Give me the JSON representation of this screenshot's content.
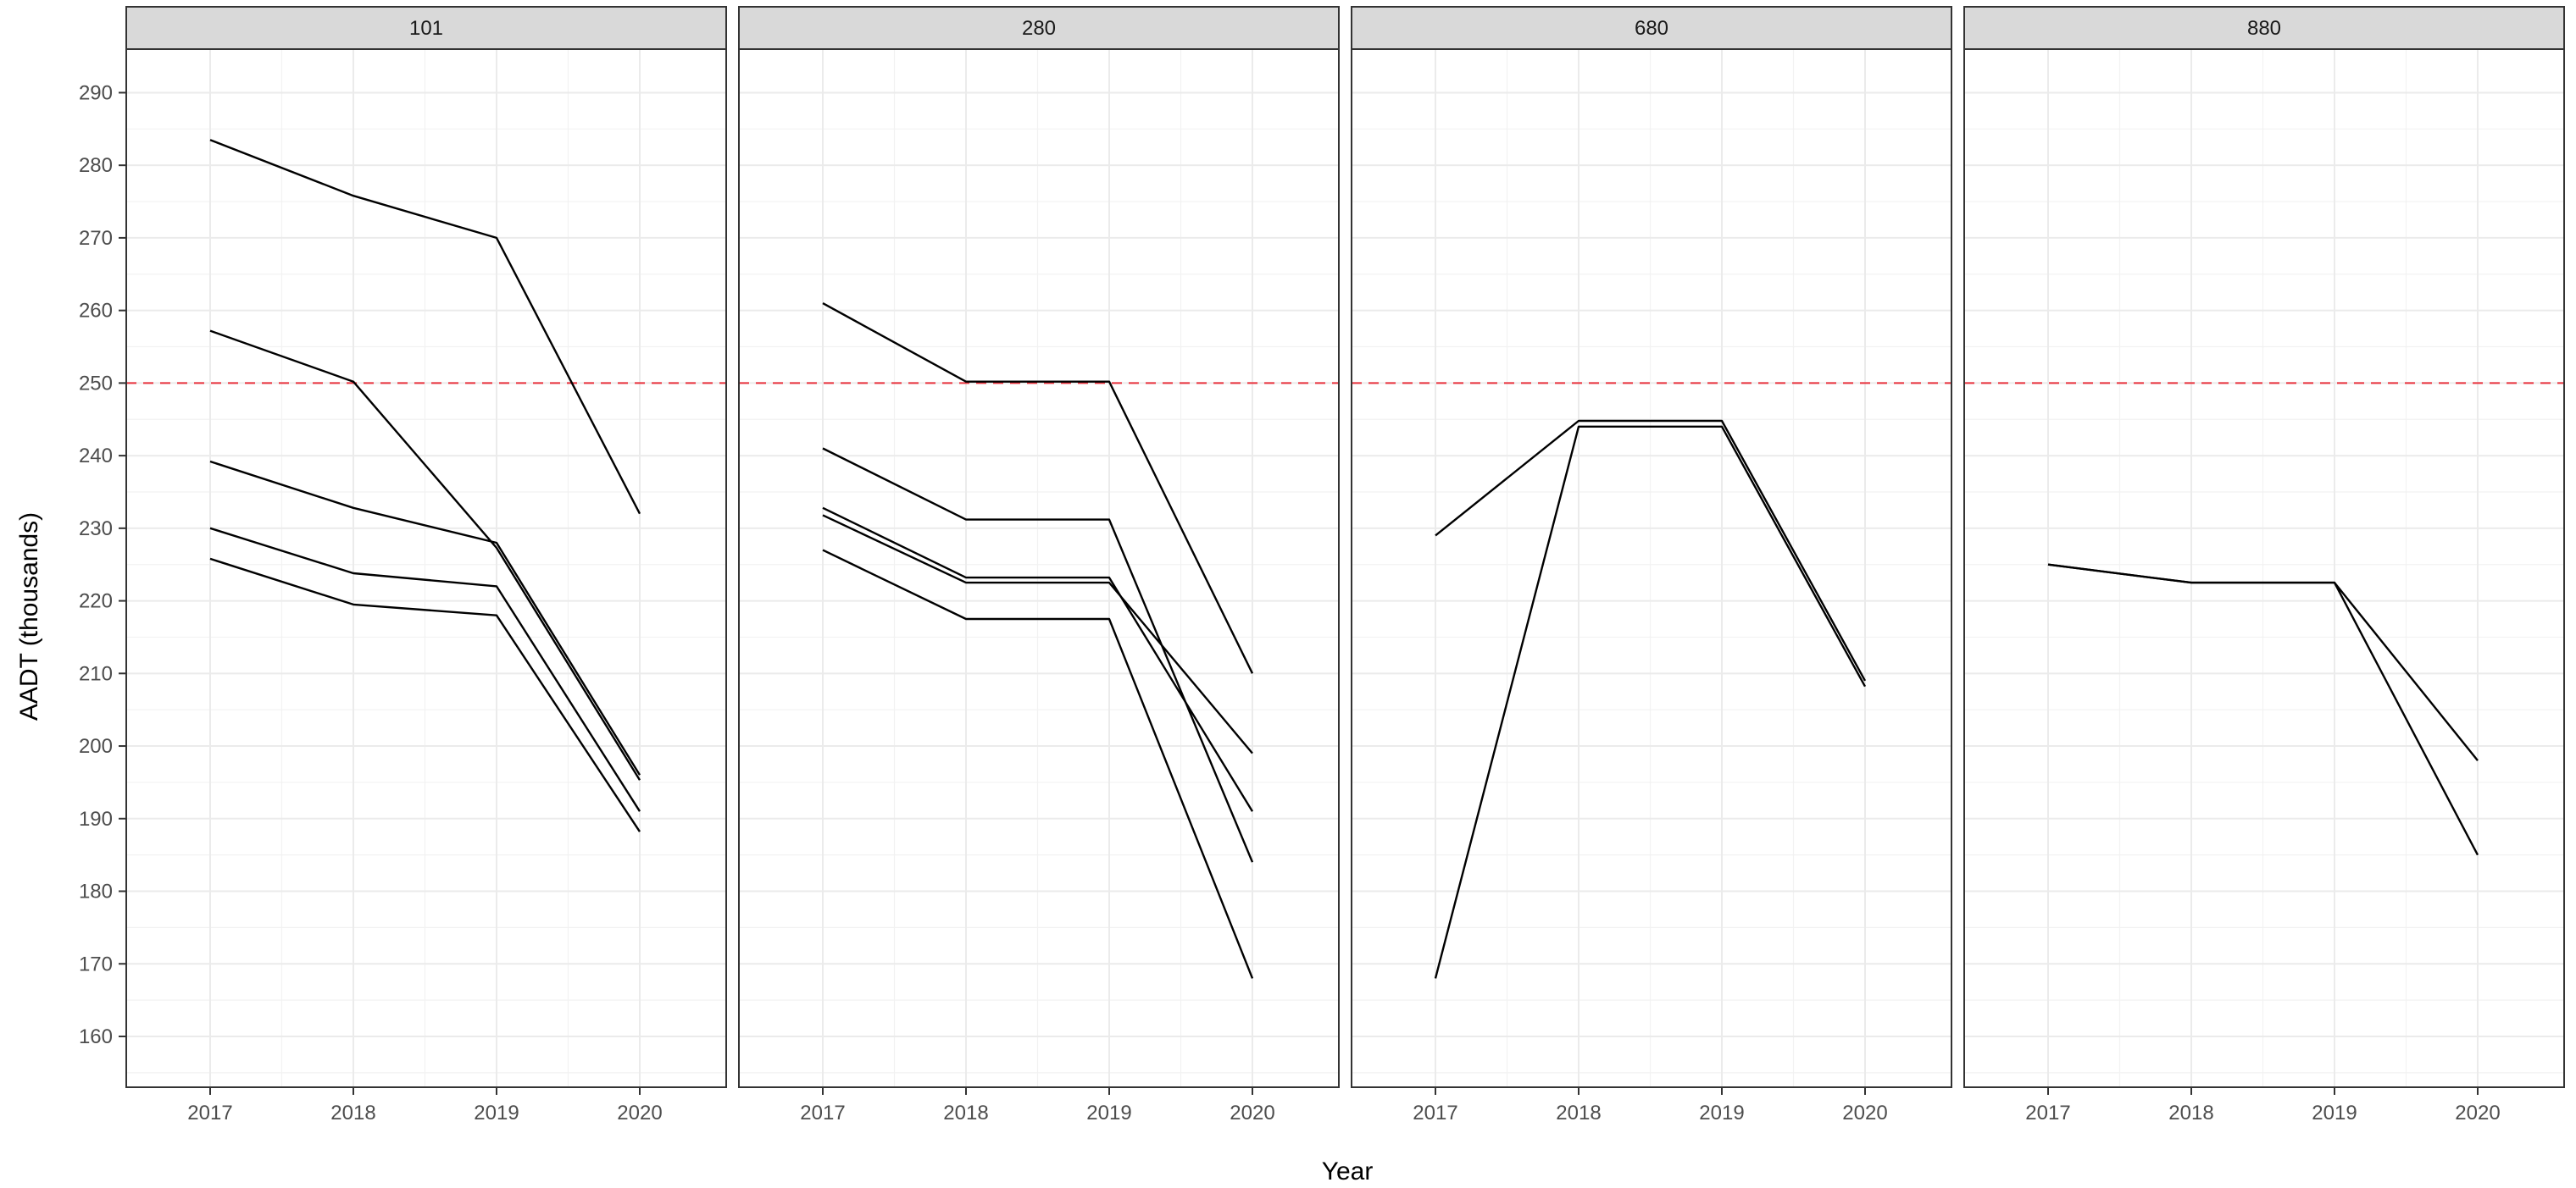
{
  "chart_data": {
    "type": "line",
    "facet_by": "highway",
    "xlabel": "Year",
    "ylabel": "AADT (thousands)",
    "x": [
      2017,
      2018,
      2019,
      2020
    ],
    "xticks": [
      "2017",
      "2018",
      "2019",
      "2020"
    ],
    "ylim": [
      153,
      296
    ],
    "yticks": [
      160,
      170,
      180,
      190,
      200,
      210,
      220,
      230,
      240,
      250,
      260,
      270,
      280,
      290
    ],
    "reference_line": {
      "y": 250,
      "color": "#E8323C",
      "style": "dashed"
    },
    "grid": true,
    "line_color": "#000000",
    "panels": [
      {
        "label": "101",
        "series": [
          {
            "values": [
              283.5,
              275.8,
              270.0,
              232.0
            ]
          },
          {
            "values": [
              257.2,
              250.2,
              227.3,
              195.3
            ]
          },
          {
            "values": [
              239.2,
              232.8,
              228.0,
              196.0
            ]
          },
          {
            "values": [
              230.0,
              223.8,
              222.0,
              191.0
            ]
          },
          {
            "values": [
              225.8,
              219.5,
              218.0,
              188.2
            ]
          }
        ]
      },
      {
        "label": "280",
        "series": [
          {
            "values": [
              261.0,
              250.2,
              250.2,
              210.0
            ]
          },
          {
            "values": [
              241.0,
              231.2,
              231.2,
              184.0
            ]
          },
          {
            "values": [
              232.8,
              223.2,
              223.2,
              191.0
            ]
          },
          {
            "values": [
              231.8,
              222.5,
              222.5,
              199.0
            ]
          },
          {
            "values": [
              227.0,
              217.5,
              217.5,
              168.0
            ]
          }
        ]
      },
      {
        "label": "680",
        "series": [
          {
            "values": [
              229.0,
              244.8,
              244.8,
              209.0
            ]
          },
          {
            "values": [
              168.0,
              244.0,
              244.0,
              208.2
            ]
          }
        ]
      },
      {
        "label": "880",
        "series": [
          {
            "values": [
              225.0,
              222.5,
              222.5,
              198.0
            ]
          },
          {
            "values": [
              225.0,
              222.5,
              222.5,
              185.0
            ]
          }
        ]
      }
    ]
  }
}
